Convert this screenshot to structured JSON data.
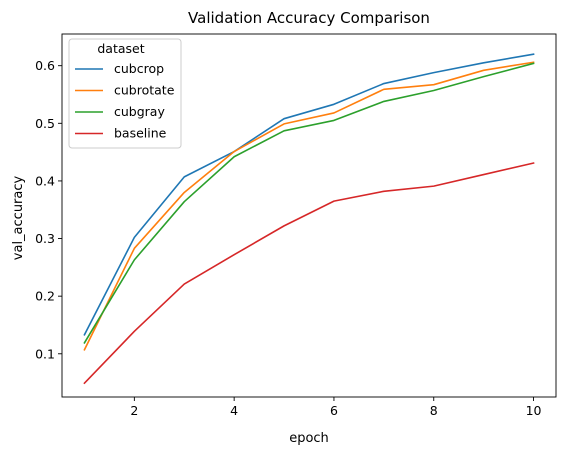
{
  "chart_data": {
    "type": "line",
    "title": "Validation Accuracy Comparison",
    "xlabel": "epoch",
    "ylabel": "val_accuracy",
    "x": [
      1,
      2,
      3,
      4,
      5,
      6,
      7,
      8,
      9,
      10
    ],
    "xlim": [
      0.55,
      10.45
    ],
    "ylim": [
      0.025,
      0.655
    ],
    "xticks": [
      2,
      4,
      6,
      8,
      10
    ],
    "yticks": [
      0.1,
      0.2,
      0.3,
      0.4,
      0.5,
      0.6
    ],
    "xtick_labels": [
      "2",
      "4",
      "6",
      "8",
      "10"
    ],
    "ytick_labels": [
      "0.1",
      "0.2",
      "0.3",
      "0.4",
      "0.5",
      "0.6"
    ],
    "grid": false,
    "legend": {
      "title": "dataset",
      "placement": "top-left"
    },
    "series": [
      {
        "name": "cubcrop",
        "color": "#1f77b4",
        "values": [
          0.133,
          0.302,
          0.407,
          0.451,
          0.508,
          0.533,
          0.569,
          0.588,
          0.605,
          0.62
        ]
      },
      {
        "name": "cubrotate",
        "color": "#ff7f0e",
        "values": [
          0.107,
          0.283,
          0.38,
          0.451,
          0.499,
          0.518,
          0.559,
          0.567,
          0.592,
          0.606
        ]
      },
      {
        "name": "cubgray",
        "color": "#2ca02c",
        "values": [
          0.119,
          0.263,
          0.364,
          0.442,
          0.487,
          0.505,
          0.538,
          0.557,
          0.581,
          0.604
        ]
      },
      {
        "name": "baseline",
        "color": "#d62728",
        "values": [
          0.049,
          0.139,
          0.221,
          0.272,
          0.322,
          0.365,
          0.382,
          0.391,
          0.411,
          0.431
        ]
      }
    ]
  }
}
